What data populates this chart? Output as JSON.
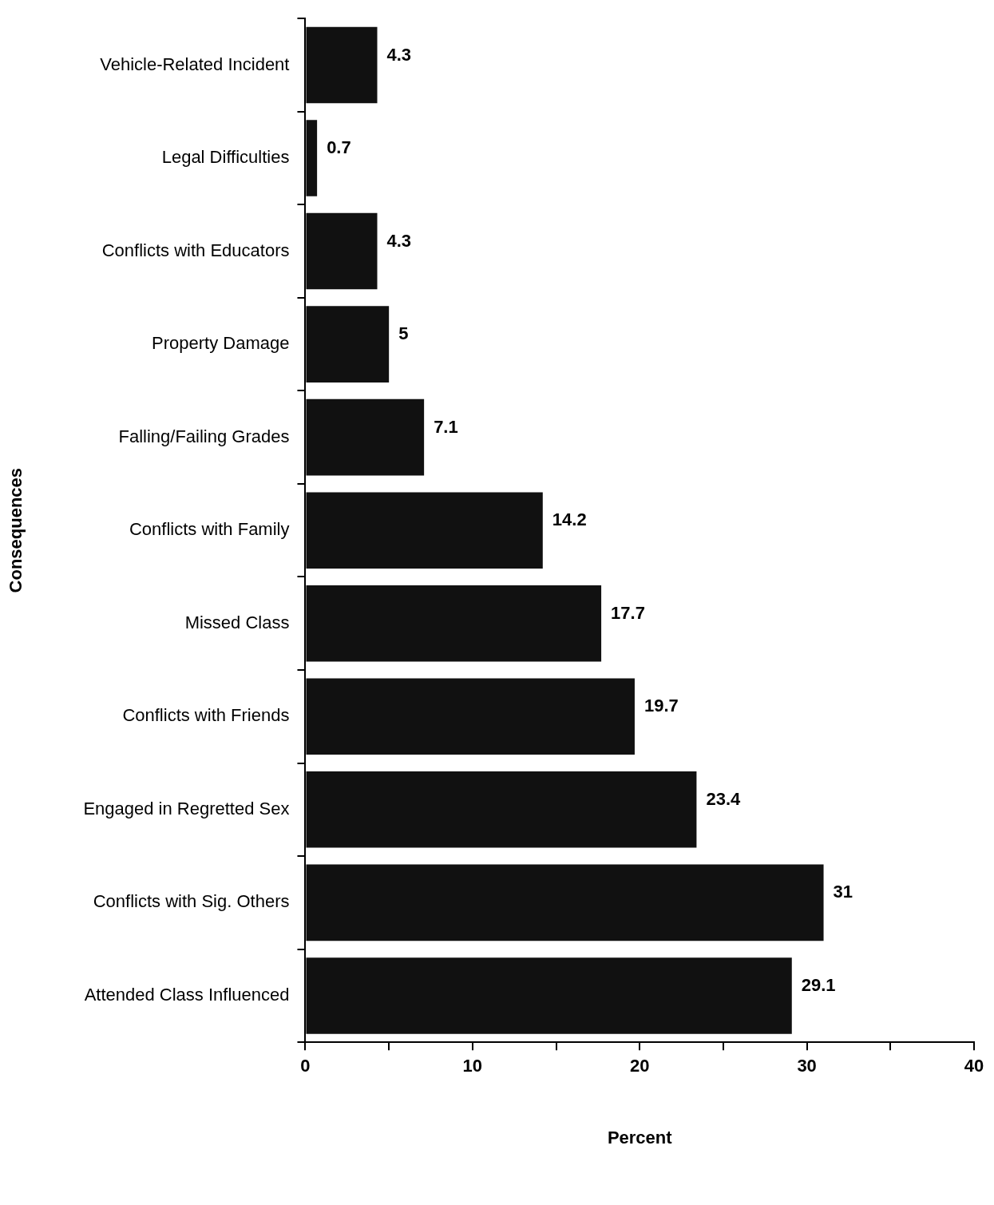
{
  "chart_data": {
    "type": "bar",
    "orientation": "horizontal",
    "xlabel": "Percent",
    "ylabel": "Consequences",
    "categories": [
      "Vehicle-Related Incident",
      "Legal Difficulties",
      "Conflicts with Educators",
      "Property Damage",
      "Falling/Failing Grades",
      "Conflicts with Family",
      "Missed Class",
      "Conflicts with Friends",
      "Engaged in Regretted Sex",
      "Conflicts with Sig. Others",
      "Attended Class Influenced"
    ],
    "values": [
      4.3,
      0.7,
      4.3,
      5,
      7.1,
      14.2,
      17.7,
      19.7,
      23.4,
      31,
      29.1
    ],
    "color": "#111111",
    "data_labels": true,
    "grid": false,
    "legend": false,
    "xlim": [
      0,
      40
    ],
    "xticks": [
      0,
      {
        "value": 5,
        "label": null
      },
      10,
      {
        "value": 15,
        "label": null
      },
      20,
      {
        "value": 25,
        "label": null
      },
      30,
      {
        "value": 35,
        "label": null
      },
      40
    ]
  }
}
